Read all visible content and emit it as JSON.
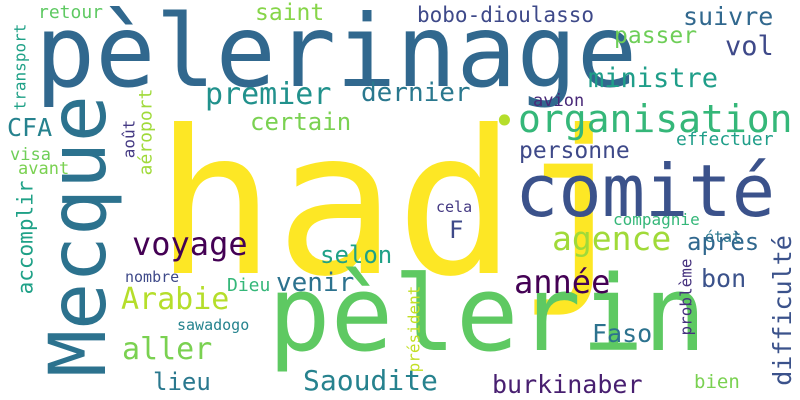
{
  "colors": {
    "background": "#ffffff",
    "palette": [
      "#fde725",
      "#5ec962",
      "#21918c",
      "#3b528b",
      "#440154"
    ]
  },
  "words": [
    {
      "id": "hadj",
      "text": "hadj",
      "color": "#fde725"
    },
    {
      "id": "pelerinage",
      "text": "pèlerinage",
      "color": "#31688e"
    },
    {
      "id": "pelerin",
      "text": "pèlerin",
      "color": "#5ec962"
    },
    {
      "id": "comite",
      "text": "comité",
      "color": "#3b528b"
    },
    {
      "id": "mecque",
      "text": "Mecque",
      "color": "#2c728e"
    },
    {
      "id": "organisation",
      "text": "organisation",
      "color": "#35b779"
    },
    {
      "id": "dot",
      "text": "•",
      "color": "#b5de2b"
    },
    {
      "id": "agence",
      "text": "agence",
      "color": "#a0da39"
    },
    {
      "id": "voyage",
      "text": "voyage",
      "color": "#440154"
    },
    {
      "id": "annee",
      "text": "année",
      "color": "#440154"
    },
    {
      "id": "premier",
      "text": "premier",
      "color": "#21918c"
    },
    {
      "id": "ministre",
      "text": "ministre",
      "color": "#1f9e89"
    },
    {
      "id": "bobo",
      "text": "bobo-dioulasso",
      "color": "#3e4989"
    },
    {
      "id": "suivre",
      "text": "suivre",
      "color": "#31688e"
    },
    {
      "id": "vol",
      "text": "vol",
      "color": "#3e4989"
    },
    {
      "id": "passer",
      "text": "passer",
      "color": "#6ece58"
    },
    {
      "id": "saint",
      "text": "saint",
      "color": "#86d549"
    },
    {
      "id": "retour",
      "text": "retour",
      "color": "#5ec962"
    },
    {
      "id": "transport",
      "text": "transport",
      "color": "#1fa187"
    },
    {
      "id": "dernier",
      "text": "dernier",
      "color": "#2a788e"
    },
    {
      "id": "certain",
      "text": "certain",
      "color": "#7ad151"
    },
    {
      "id": "personne",
      "text": "personne",
      "color": "#3e4989"
    },
    {
      "id": "avion",
      "text": "avion",
      "color": "#482878"
    },
    {
      "id": "effectuer",
      "text": "effectuer",
      "color": "#1f9e89"
    },
    {
      "id": "cfa",
      "text": "CFA",
      "color": "#26828e"
    },
    {
      "id": "visa",
      "text": "visa",
      "color": "#6ece58"
    },
    {
      "id": "avant",
      "text": "avant",
      "color": "#7ad151"
    },
    {
      "id": "aout",
      "text": "août",
      "color": "#443983"
    },
    {
      "id": "aeroport",
      "text": "aéroport",
      "color": "#a0da39"
    },
    {
      "id": "accomplir",
      "text": "accomplir",
      "color": "#1fa187"
    },
    {
      "id": "cela",
      "text": "cela",
      "color": "#443983"
    },
    {
      "id": "f",
      "text": "F",
      "color": "#3e4989"
    },
    {
      "id": "compagnie",
      "text": "compagnie",
      "color": "#35b779"
    },
    {
      "id": "etat",
      "text": "état",
      "color": "#2a788e"
    },
    {
      "id": "apres",
      "text": "après",
      "color": "#31688e"
    },
    {
      "id": "selon",
      "text": "selon",
      "color": "#1fa187"
    },
    {
      "id": "arabie",
      "text": "Arabie",
      "color": "#b5de2b"
    },
    {
      "id": "bon",
      "text": "bon",
      "color": "#3b528b"
    },
    {
      "id": "difficulte",
      "text": "difficulté",
      "color": "#3b528b"
    },
    {
      "id": "nombre",
      "text": "nombre",
      "color": "#3e4989"
    },
    {
      "id": "dieu",
      "text": "Dieu",
      "color": "#35b779"
    },
    {
      "id": "venir",
      "text": "venir",
      "color": "#2c728e"
    },
    {
      "id": "aller",
      "text": "aller",
      "color": "#7ad151"
    },
    {
      "id": "sawadogo",
      "text": "sawadogo",
      "color": "#25838e"
    },
    {
      "id": "president",
      "text": "président",
      "color": "#c2df23"
    },
    {
      "id": "faso",
      "text": "Faso",
      "color": "#2c728e"
    },
    {
      "id": "probleme",
      "text": "problème",
      "color": "#46327e"
    },
    {
      "id": "lieu",
      "text": "lieu",
      "color": "#2a788e"
    },
    {
      "id": "saoudite",
      "text": "Saoudite",
      "color": "#26828e"
    },
    {
      "id": "burkinaber",
      "text": "burkinaber",
      "color": "#481f70"
    },
    {
      "id": "bien",
      "text": "bien",
      "color": "#7ad151"
    }
  ]
}
